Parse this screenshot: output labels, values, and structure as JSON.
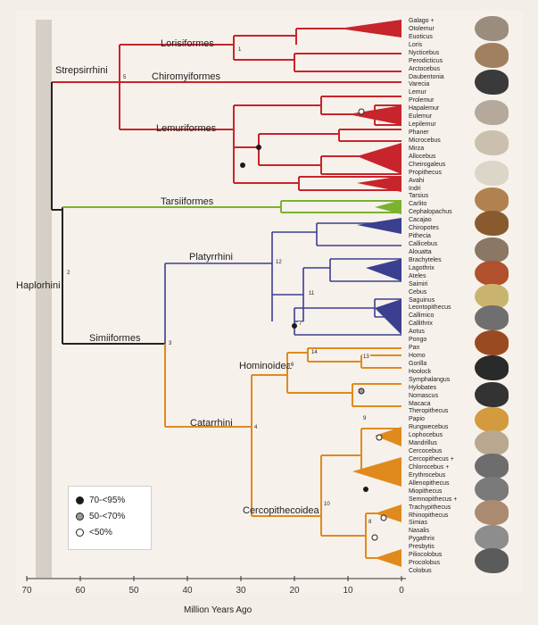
{
  "colors": {
    "strepsirrhini": "#c8242b",
    "tarsiiformes": "#7ab32e",
    "platyrrhini": "#3b3f8f",
    "catarrhini": "#e08a1e",
    "haplorhini_stem": "#222222"
  },
  "clades": {
    "strepsirrhini": "Strepsirrhini",
    "lorisiformes": "Lorisiformes",
    "chiromyiformes": "Chiromyiformes",
    "lemuriformes": "Lemuriformes",
    "tarsiiformes": "Tarsiiformes",
    "platyrrhini": "Platyrrhini",
    "haplorhini": "Haplorhini",
    "simiiformes": "Simiiformes",
    "hominoidea": "Hominoidea",
    "catarrhini": "Catarrhini",
    "cercopithecoidea": "Cercopithecoidea"
  },
  "node_numbers": [
    "1",
    "5",
    "2",
    "12",
    "11",
    "7",
    "3",
    "14",
    "13",
    "6",
    "4",
    "9",
    "10",
    "8"
  ],
  "taxa": [
    "Galago +",
    "Otolemur",
    "Euoticus",
    "Loris",
    "Nycticebus",
    "Perodicticus",
    "Arctocebus",
    "Daubentonia",
    "Varecia",
    "Lemur",
    "Prolemur",
    "Hapalemur",
    "Eulemur",
    "Lepilemur",
    "Phaner",
    "Microcebus",
    "Mirza",
    "Allocebus",
    "Cheirogaleus",
    "Propithecus",
    "Avahi",
    "Indri",
    "Tarsius",
    "Carlito",
    "Cephalopachus",
    "Cacajao",
    "Chiropotes",
    "Pithecia",
    "Callicebus",
    "Alouatta",
    "Brachyteles",
    "Lagothrix",
    "Ateles",
    "Saimiri",
    "Cebus",
    "Saguinus",
    "Leontopithecus",
    "Callimico",
    "Callithrix",
    "Aotus",
    "Pongo",
    "Pan",
    "Homo",
    "Gorilla",
    "Hoolock",
    "Symphalangus",
    "Hylobates",
    "Nomascus",
    "Macaca",
    "Theropithecus",
    "Papio",
    "Rungwecebus",
    "Lophocebus",
    "Mandrillus",
    "Cercocebus",
    "Cercopithecus +",
    "Chlorocebus +",
    "Erythrocebus",
    "Allenopithecus",
    "Miopithecus",
    "Semnopithecus +",
    "Trachypithecus",
    "Rhinopithecus",
    "Simias",
    "Nasalis",
    "Pygathrix",
    "Presbytis",
    "Piliocolobus",
    "Procolobus",
    "Colobus"
  ],
  "legend": {
    "items": [
      {
        "label": "70-<95%",
        "fill": "#1a1a1a"
      },
      {
        "label": "50-<70%",
        "fill": "#9a9a9a"
      },
      {
        "label": "<50%",
        "fill": "#ffffff"
      }
    ]
  },
  "axis": {
    "title": "Million Years Ago",
    "ticks": [
      "70",
      "60",
      "50",
      "40",
      "30",
      "20",
      "10",
      "0"
    ]
  }
}
